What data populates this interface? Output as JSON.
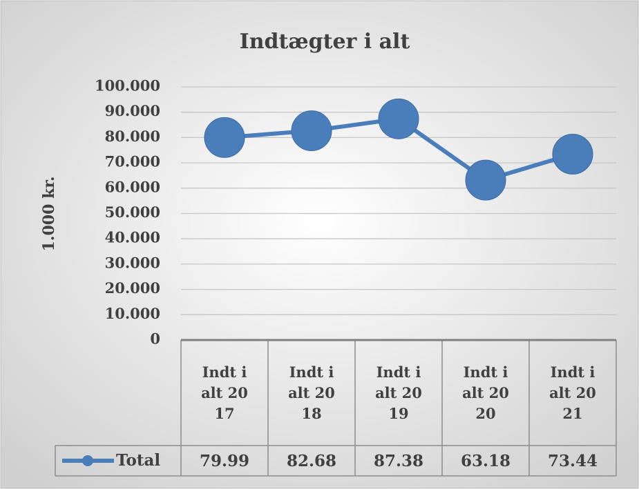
{
  "chart_data": {
    "type": "line",
    "title": "Indtægter i alt",
    "y_label": "1.000 kr.",
    "categories": [
      "Indt i alt 2017",
      "Indt i alt 2018",
      "Indt i alt 2019",
      "Indt i alt 2020",
      "Indt i alt 2021"
    ],
    "series": [
      {
        "name": "Total",
        "color": "#4a7ebb",
        "values": [
          79990,
          82680,
          87380,
          63180,
          73440
        ],
        "value_labels": [
          "79.99",
          "82.68",
          "87.38",
          "63.18",
          "73.44"
        ]
      }
    ],
    "ylim": [
      0,
      100000
    ],
    "yticks": [
      0,
      {
        "value": 10000,
        "label": "10.000"
      },
      {
        "value": 20000,
        "label": "20.000"
      },
      {
        "value": 30000,
        "label": "30.000"
      },
      {
        "value": 40000,
        "label": "40.000"
      },
      {
        "value": 50000,
        "label": "50.000"
      },
      {
        "value": 60000,
        "label": "60.000"
      },
      {
        "value": 70000,
        "label": "70.000"
      },
      {
        "value": 80000,
        "label": "80.000"
      },
      {
        "value": 90000,
        "label": "90.000"
      },
      {
        "value": 100000,
        "label": "100.000"
      }
    ],
    "grid": true,
    "data_table": true
  }
}
